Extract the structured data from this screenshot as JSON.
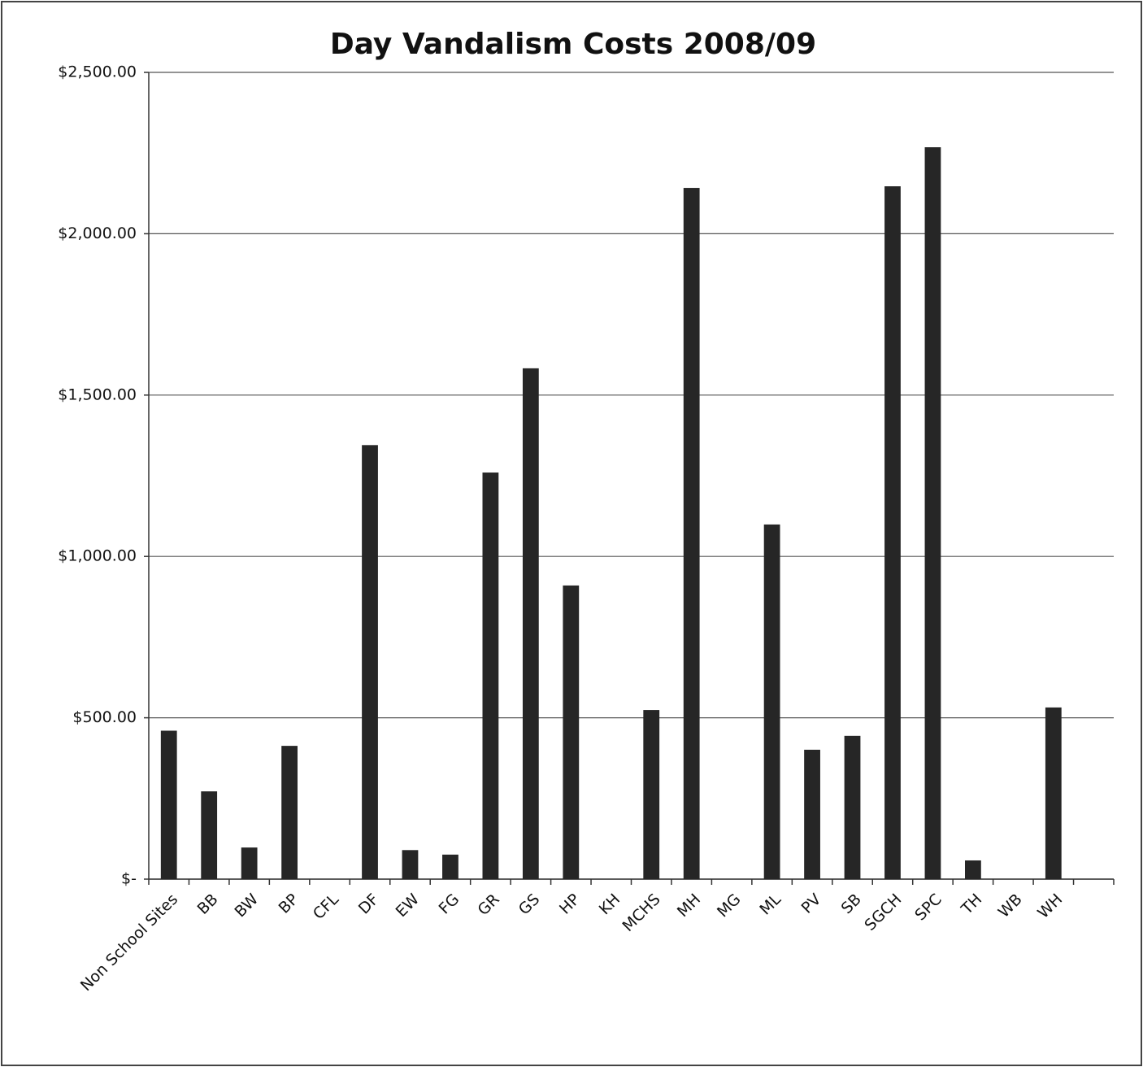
{
  "chart_data": {
    "type": "bar",
    "title": "Day Vandalism Costs 2008/09",
    "categories": [
      "Non School Sites",
      "BB",
      "BW",
      "BP",
      "CFL",
      "DF",
      "EW",
      "FG",
      "GR",
      "GS",
      "HP",
      "KH",
      "MCHS",
      "MH",
      "MG",
      "ML",
      "PV",
      "SB",
      "SGCH",
      "SPC",
      "TH",
      "WB",
      "WH",
      null
    ],
    "values": [
      460,
      272,
      98,
      413,
      0,
      1345,
      90,
      76,
      1260,
      1583,
      910,
      0,
      524,
      2142,
      0,
      1099,
      401,
      444,
      2147,
      2268,
      58,
      0,
      532,
      null
    ],
    "color": "#262626",
    "ylim": [
      0,
      2500
    ],
    "yticks": [
      {
        "value": 0,
        "label": "$-"
      },
      {
        "value": 500,
        "label": "$500.00"
      },
      {
        "value": 1000,
        "label": "$1,000.00"
      },
      {
        "value": 1500,
        "label": "$1,500.00"
      },
      {
        "value": 2000,
        "label": "$2,000.00"
      },
      {
        "value": 2500,
        "label": "$2,500.00"
      }
    ],
    "grid": true
  }
}
